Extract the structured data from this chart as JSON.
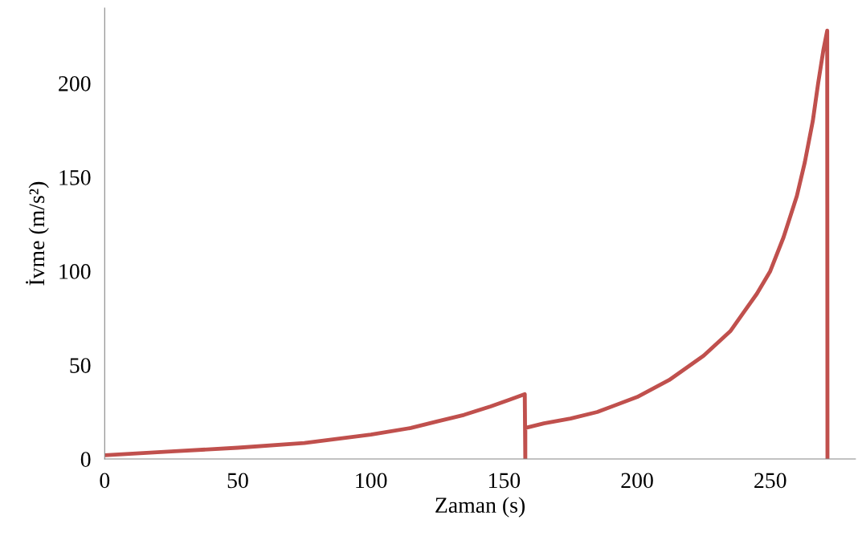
{
  "chart_data": {
    "type": "line",
    "xlabel": "Zaman (s)",
    "ylabel": "İvme (m/s²)",
    "xlim": [
      0,
      282
    ],
    "ylim": [
      0,
      240
    ],
    "xticks": [
      0,
      50,
      100,
      150,
      200,
      250
    ],
    "yticks": [
      0,
      50,
      100,
      150,
      200
    ],
    "grid": false,
    "legend": false,
    "marker": "none",
    "line_style": "solid",
    "series": [
      {
        "color": "#c0504d",
        "x": [
          0,
          25,
          50,
          75,
          100,
          115,
          125,
          135,
          145,
          152,
          157.8,
          158,
          158,
          165,
          175,
          185,
          200,
          212,
          225,
          235,
          240,
          245,
          250,
          255,
          260,
          263,
          266,
          268,
          270,
          271.4,
          271.5
        ],
        "values": [
          2,
          4,
          6,
          8.5,
          13,
          16.5,
          20,
          23.5,
          28,
          31.5,
          34.5,
          0,
          16.5,
          19,
          21.5,
          25,
          33,
          42,
          55,
          68,
          78,
          88,
          100,
          118,
          140,
          158,
          180,
          200,
          218,
          228,
          0
        ]
      }
    ]
  }
}
